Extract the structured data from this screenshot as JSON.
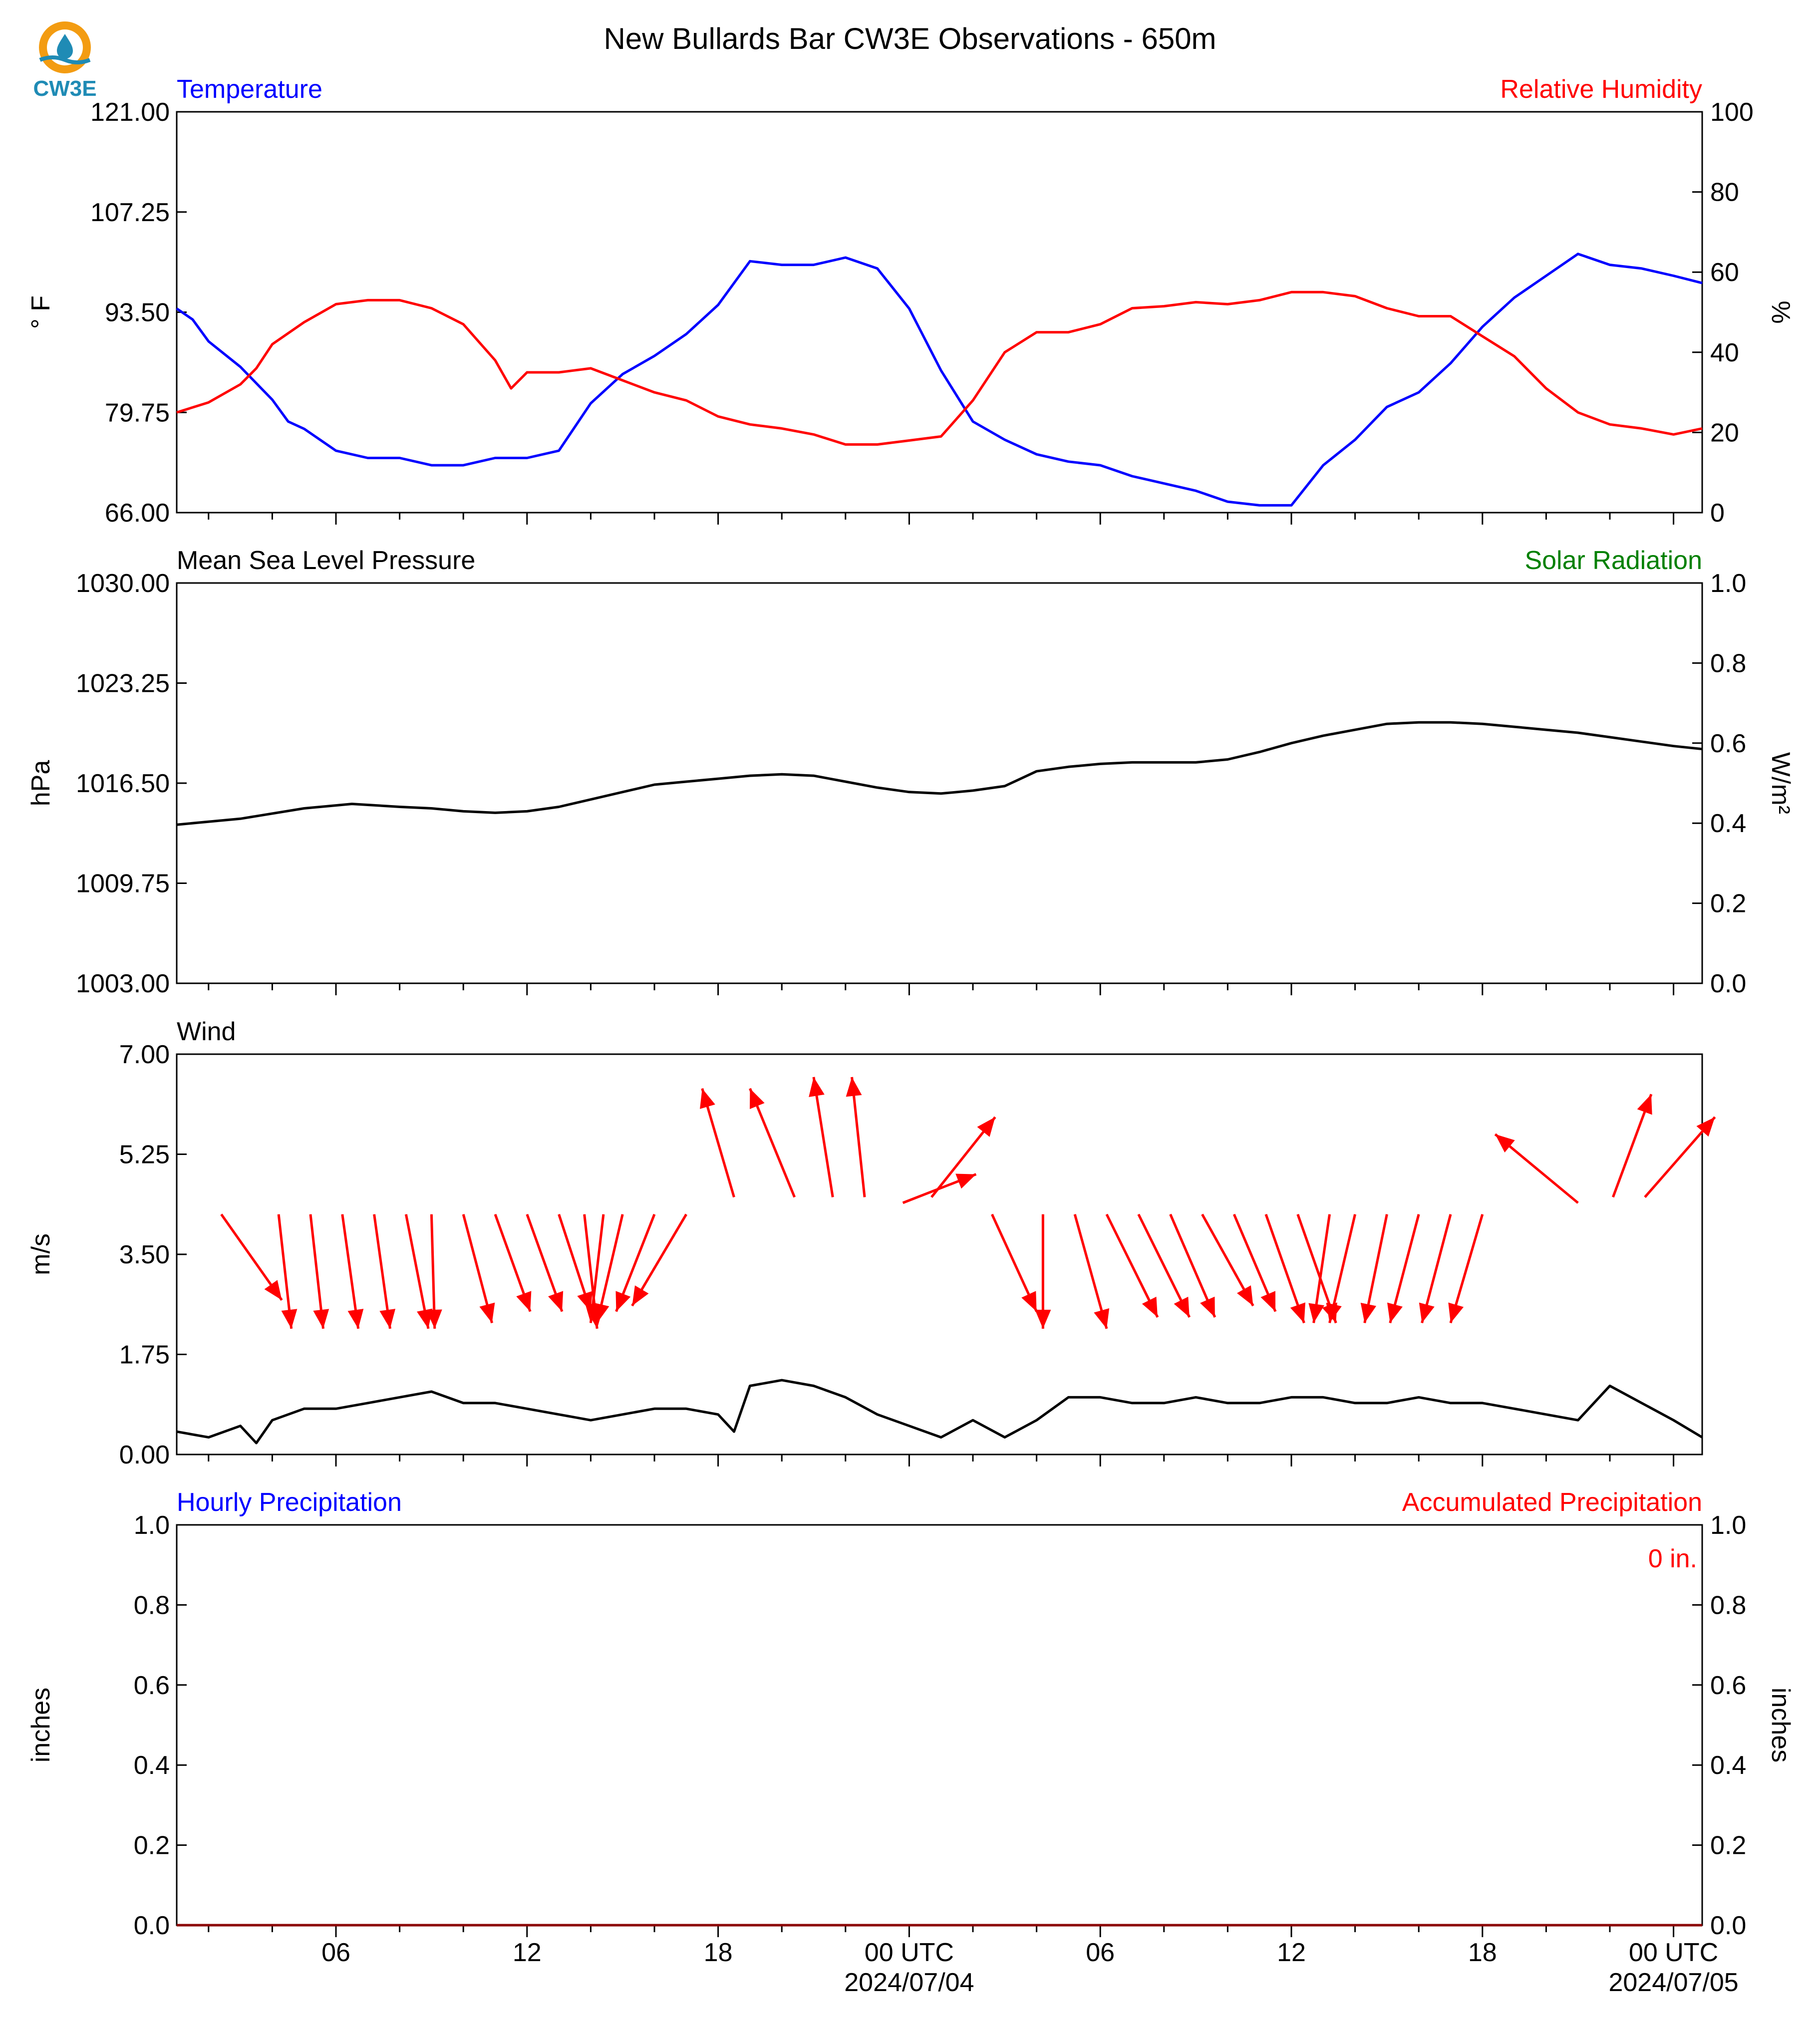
{
  "title": "New Bullards Bar CW3E Observations - 650m",
  "logo": {
    "text": "CW3E",
    "color": "#1f8bb5",
    "ring_color": "#f39c12"
  },
  "x_axis": {
    "ticks": [
      {
        "hour": 6,
        "label": "06"
      },
      {
        "hour": 12,
        "label": "12"
      },
      {
        "hour": 18,
        "label": "18"
      },
      {
        "hour": 24,
        "label": "00 UTC",
        "sublabel": "2024/07/04"
      },
      {
        "hour": 30,
        "label": "06"
      },
      {
        "hour": 36,
        "label": "12"
      },
      {
        "hour": 42,
        "label": "18"
      },
      {
        "hour": 48,
        "label": "00 UTC",
        "sublabel": "2024/07/05"
      }
    ],
    "range_hours": [
      1,
      48.9
    ]
  },
  "chart_data": [
    {
      "type": "line",
      "id": "temp_rh",
      "left_title": "Temperature",
      "left_title_color": "#0000ff",
      "right_title": "Relative Humidity",
      "right_title_color": "#ff0000",
      "ylabel": "° F",
      "ylabel_right": "%",
      "ylim": [
        66,
        121
      ],
      "ylim_right": [
        0,
        100
      ],
      "yticks": [
        "66.00",
        "79.75",
        "93.50",
        "107.25",
        "121.00"
      ],
      "yticks_right": [
        "0",
        "20",
        "40",
        "60",
        "80",
        "100"
      ],
      "series": [
        {
          "axis": "left",
          "color": "#0000ff",
          "x": [
            1,
            1.5,
            2,
            3,
            4,
            4.5,
            5,
            6,
            7,
            8,
            9,
            10,
            11,
            12,
            13,
            14,
            15,
            16,
            17,
            18,
            19,
            20,
            21,
            22,
            23,
            24,
            25,
            26,
            27,
            28,
            29,
            30,
            31,
            32,
            33,
            34,
            35,
            36,
            37,
            38,
            39,
            40,
            41,
            42,
            43,
            44,
            45,
            46,
            47,
            48,
            48.9
          ],
          "y": [
            94,
            92.5,
            89.5,
            86,
            81.5,
            78.5,
            77.5,
            74.5,
            73.5,
            73.5,
            72.5,
            72.5,
            73.5,
            73.5,
            74.5,
            81,
            85,
            87.5,
            90.5,
            94.5,
            100.5,
            100,
            100,
            101,
            99.5,
            94,
            85.5,
            78.5,
            76,
            74,
            73,
            72.5,
            71,
            70,
            69,
            67.5,
            67,
            67,
            72.5,
            76,
            80.5,
            82.5,
            86.5,
            91.5,
            95.5,
            98.5,
            101.5,
            100,
            99.5,
            98.5,
            97.5
          ]
        },
        {
          "axis": "right",
          "color": "#ff0000",
          "x": [
            1,
            2,
            3,
            3.5,
            4,
            5,
            6,
            7,
            8,
            9,
            10,
            11,
            11.5,
            12,
            13,
            14,
            15,
            16,
            17,
            18,
            19,
            20,
            21,
            22,
            23,
            24,
            25,
            26,
            27,
            28,
            29,
            30,
            31,
            32,
            33,
            34,
            35,
            36,
            37,
            38,
            39,
            40,
            41,
            42,
            43,
            44,
            45,
            46,
            47,
            48,
            48.9
          ],
          "y": [
            25,
            27.5,
            32,
            36,
            42,
            47.5,
            52,
            53,
            53,
            51,
            47,
            38,
            31,
            35,
            35,
            36,
            33,
            30,
            28,
            24,
            22,
            21,
            19.5,
            17,
            17,
            18,
            19,
            28,
            40,
            45,
            45,
            47,
            51,
            51.5,
            52.5,
            52,
            53,
            55,
            55,
            54,
            51,
            49,
            49,
            44,
            39,
            31,
            25,
            22,
            21,
            19.5,
            21
          ]
        }
      ]
    },
    {
      "type": "line",
      "id": "pressure",
      "left_title": "Mean Sea Level Pressure",
      "left_title_color": "#000000",
      "right_title": "Solar Radiation",
      "right_title_color": "#008000",
      "ylabel": "hPa",
      "ylabel_right": "W/m²",
      "ylim": [
        1003,
        1030
      ],
      "ylim_right": [
        0,
        1
      ],
      "yticks": [
        "1003.00",
        "1009.75",
        "1016.50",
        "1023.25",
        "1030.00"
      ],
      "yticks_right": [
        "0.0",
        "0.2",
        "0.4",
        "0.6",
        "0.8",
        "1.0"
      ],
      "series": [
        {
          "axis": "left",
          "color": "#000000",
          "x": [
            1,
            3,
            5,
            6.5,
            8,
            9,
            10,
            11,
            12,
            13,
            14,
            15,
            16,
            17,
            18,
            19,
            20,
            21,
            22,
            23,
            24,
            25,
            26,
            27,
            28,
            29,
            30,
            31,
            32,
            33,
            34,
            35,
            36,
            37,
            38,
            39,
            40,
            41,
            42,
            43,
            44,
            45,
            46,
            47,
            48,
            48.9
          ],
          "y": [
            1013.7,
            1014.1,
            1014.8,
            1015.1,
            1014.9,
            1014.8,
            1014.6,
            1014.5,
            1014.6,
            1014.9,
            1015.4,
            1015.9,
            1016.4,
            1016.6,
            1016.8,
            1017.0,
            1017.1,
            1017.0,
            1016.6,
            1016.2,
            1015.9,
            1015.8,
            1016.0,
            1016.3,
            1017.3,
            1017.6,
            1017.8,
            1017.9,
            1017.9,
            1017.9,
            1018.1,
            1018.6,
            1019.2,
            1019.7,
            1020.1,
            1020.5,
            1020.6,
            1020.6,
            1020.5,
            1020.3,
            1020.1,
            1019.9,
            1019.6,
            1019.3,
            1019.0,
            1018.8
          ]
        }
      ]
    },
    {
      "type": "line",
      "id": "wind",
      "left_title": "Wind",
      "left_title_color": "#000000",
      "ylabel": "m/s",
      "ylim": [
        0,
        7
      ],
      "yticks": [
        "0.00",
        "1.75",
        "3.50",
        "5.25",
        "7.00"
      ],
      "series": [
        {
          "axis": "left",
          "color": "#000000",
          "x": [
            1,
            2,
            3,
            3.5,
            4,
            5,
            6,
            7,
            8,
            9,
            10,
            11,
            12,
            13,
            14,
            15,
            16,
            17,
            18,
            18.5,
            19,
            20,
            21,
            22,
            23,
            24,
            25,
            26,
            27,
            28,
            29,
            30,
            31,
            32,
            33,
            34,
            35,
            36,
            37,
            38,
            39,
            40,
            41,
            42,
            43,
            44,
            45,
            46,
            47,
            48,
            48.9
          ],
          "y": [
            0.4,
            0.3,
            0.5,
            0.2,
            0.6,
            0.8,
            0.8,
            0.9,
            1.0,
            1.1,
            0.9,
            0.9,
            0.8,
            0.7,
            0.6,
            0.7,
            0.8,
            0.8,
            0.7,
            0.4,
            1.2,
            1.3,
            1.2,
            1.0,
            0.7,
            0.5,
            0.3,
            0.6,
            0.3,
            0.6,
            1.0,
            1.0,
            0.9,
            0.9,
            1.0,
            0.9,
            0.9,
            1.0,
            1.0,
            0.9,
            0.9,
            1.0,
            0.9,
            0.9,
            0.8,
            0.7,
            0.6,
            1.2,
            0.9,
            0.6,
            0.3
          ]
        }
      ],
      "arrows": {
        "color": "#ff0000",
        "items": [
          {
            "x": 2.4,
            "y0": 4.2,
            "x1": 4.3,
            "y1": 2.7
          },
          {
            "x": 4.2,
            "y0": 4.2,
            "x1": 4.6,
            "y1": 2.2
          },
          {
            "x": 5.2,
            "y0": 4.2,
            "x1": 5.6,
            "y1": 2.2
          },
          {
            "x": 6.2,
            "y0": 4.2,
            "x1": 6.7,
            "y1": 2.2
          },
          {
            "x": 7.2,
            "y0": 4.2,
            "x1": 7.7,
            "y1": 2.2
          },
          {
            "x": 8.2,
            "y0": 4.2,
            "x1": 8.9,
            "y1": 2.2
          },
          {
            "x": 9.0,
            "y0": 4.2,
            "x1": 9.1,
            "y1": 2.2
          },
          {
            "x": 10.0,
            "y0": 4.2,
            "x1": 10.9,
            "y1": 2.3
          },
          {
            "x": 11.0,
            "y0": 4.2,
            "x1": 12.1,
            "y1": 2.5
          },
          {
            "x": 12.0,
            "y0": 4.2,
            "x1": 13.1,
            "y1": 2.5
          },
          {
            "x": 13.0,
            "y0": 4.2,
            "x1": 14.0,
            "y1": 2.5
          },
          {
            "x": 13.8,
            "y0": 4.2,
            "x1": 14.2,
            "y1": 2.2
          },
          {
            "x": 14.4,
            "y0": 4.2,
            "x1": 14.0,
            "y1": 2.3
          },
          {
            "x": 15.0,
            "y0": 4.2,
            "x1": 14.2,
            "y1": 2.3
          },
          {
            "x": 16.0,
            "y0": 4.2,
            "x1": 14.8,
            "y1": 2.5
          },
          {
            "x": 17.0,
            "y0": 4.2,
            "x1": 15.3,
            "y1": 2.6
          },
          {
            "x": 18.5,
            "y0": 4.5,
            "x1": 17.5,
            "y1": 6.4
          },
          {
            "x": 20.4,
            "y0": 4.5,
            "x1": 19.0,
            "y1": 6.4
          },
          {
            "x": 21.6,
            "y0": 4.5,
            "x1": 21.0,
            "y1": 6.6
          },
          {
            "x": 22.6,
            "y0": 4.5,
            "x1": 22.2,
            "y1": 6.6
          },
          {
            "x": 23.8,
            "y0": 4.4,
            "x1": 26.1,
            "y1": 4.9
          },
          {
            "x": 24.7,
            "y0": 4.5,
            "x1": 26.7,
            "y1": 5.9
          },
          {
            "x": 26.6,
            "y0": 4.2,
            "x1": 28.0,
            "y1": 2.5
          },
          {
            "x": 28.2,
            "y0": 4.2,
            "x1": 28.2,
            "y1": 2.2
          },
          {
            "x": 29.2,
            "y0": 4.2,
            "x1": 30.2,
            "y1": 2.2
          },
          {
            "x": 30.2,
            "y0": 4.2,
            "x1": 31.8,
            "y1": 2.4
          },
          {
            "x": 31.2,
            "y0": 4.2,
            "x1": 32.8,
            "y1": 2.4
          },
          {
            "x": 32.2,
            "y0": 4.2,
            "x1": 33.6,
            "y1": 2.4
          },
          {
            "x": 33.2,
            "y0": 4.2,
            "x1": 34.8,
            "y1": 2.6
          },
          {
            "x": 34.2,
            "y0": 4.2,
            "x1": 35.5,
            "y1": 2.5
          },
          {
            "x": 35.2,
            "y0": 4.2,
            "x1": 36.4,
            "y1": 2.3
          },
          {
            "x": 36.2,
            "y0": 4.2,
            "x1": 37.4,
            "y1": 2.3
          },
          {
            "x": 37.2,
            "y0": 4.2,
            "x1": 36.7,
            "y1": 2.3
          },
          {
            "x": 38.0,
            "y0": 4.2,
            "x1": 37.2,
            "y1": 2.3
          },
          {
            "x": 39.0,
            "y0": 4.2,
            "x1": 38.3,
            "y1": 2.3
          },
          {
            "x": 40.0,
            "y0": 4.2,
            "x1": 39.1,
            "y1": 2.3
          },
          {
            "x": 41.0,
            "y0": 4.2,
            "x1": 40.1,
            "y1": 2.3
          },
          {
            "x": 42.0,
            "y0": 4.2,
            "x1": 41.0,
            "y1": 2.3
          },
          {
            "x": 45.0,
            "y0": 4.4,
            "x1": 42.4,
            "y1": 5.6
          },
          {
            "x": 46.1,
            "y0": 4.5,
            "x1": 47.3,
            "y1": 6.3
          },
          {
            "x": 47.1,
            "y0": 4.5,
            "x1": 49.3,
            "y1": 5.9
          }
        ]
      }
    },
    {
      "type": "line",
      "id": "precip",
      "left_title": "Hourly Precipitation",
      "left_title_color": "#0000ff",
      "right_title": "Accumulated Precipitation",
      "right_title_color": "#ff0000",
      "annotation": "0 in.",
      "ylabel": "inches",
      "ylabel_right": "inches",
      "ylim": [
        0,
        1
      ],
      "ylim_right": [
        0,
        1
      ],
      "yticks": [
        "0.0",
        "0.2",
        "0.4",
        "0.6",
        "0.8",
        "1.0"
      ],
      "yticks_right": [
        "0.0",
        "0.2",
        "0.4",
        "0.6",
        "0.8",
        "1.0"
      ],
      "series": [
        {
          "axis": "right",
          "color": "#8b0000",
          "x": [
            1,
            48.9
          ],
          "y": [
            0,
            0
          ]
        }
      ]
    }
  ]
}
